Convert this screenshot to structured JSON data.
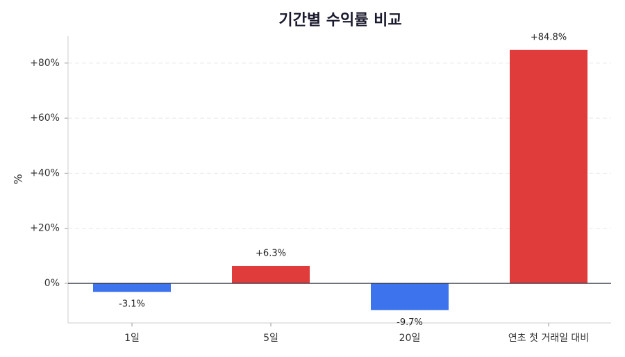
{
  "chart_data": {
    "type": "bar",
    "title": "기간별 수익률 비교",
    "ylabel": "%",
    "categories": [
      "1일",
      "5일",
      "20일",
      "연초 첫 거래일 대비"
    ],
    "values": [
      -3.1,
      6.3,
      -9.7,
      84.8
    ],
    "value_labels": [
      "-3.1%",
      "+6.3%",
      "-9.7%",
      "+84.8%"
    ],
    "colors": [
      "#3d74ee",
      "#e03c3c",
      "#3d74ee",
      "#e03c3c"
    ],
    "ylim": [
      -14.4,
      89.8
    ],
    "yticks": [
      {
        "value": 0,
        "label": "0%"
      },
      {
        "value": 20,
        "label": "+20%"
      },
      {
        "value": 40,
        "label": "+40%"
      },
      {
        "value": 60,
        "label": "+60%"
      },
      {
        "value": 80,
        "label": "+80%"
      }
    ],
    "grid": true
  }
}
